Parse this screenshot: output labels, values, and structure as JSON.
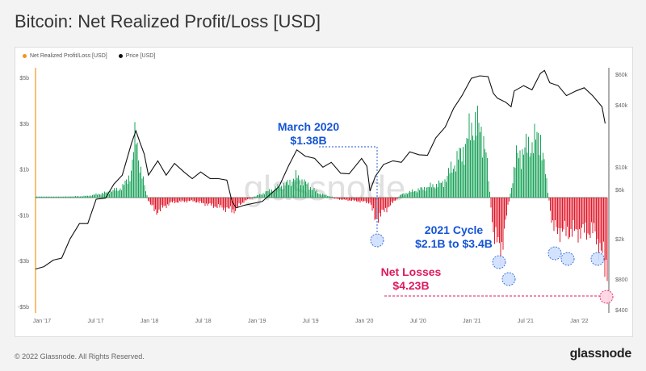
{
  "title": "Bitcoin: Net Realized Profit/Loss [USD]",
  "legend": {
    "series1": "Net Realized Profit/Loss [USD]",
    "series2": "Price [USD]",
    "color1": "#f7931a",
    "color2": "#111111"
  },
  "footer": "© 2022 Glassnode. All Rights Reserved.",
  "brand": "glassnode",
  "watermark": "glassnode",
  "chart_data": {
    "type": "bar+line",
    "x_ticks": [
      "Jan '17",
      "Jul '17",
      "Jan '18",
      "Jul '18",
      "Jan '19",
      "Jul '19",
      "Jan '20",
      "Jul '20",
      "Jan '21",
      "Jul '21",
      "Jan '22"
    ],
    "y_left_ticks": [
      "$5b",
      "$3b",
      "$1b",
      "-$1b",
      "-$3b",
      "-$5b"
    ],
    "y_right_ticks": [
      "$60k",
      "$40k",
      "$10k",
      "$6k",
      "$2k",
      "$800",
      "$400"
    ],
    "ylim_left": [
      -5,
      5
    ],
    "colors": {
      "profit": "#1aa35a",
      "loss": "#e0192b",
      "price": "#111111",
      "annotation_blue": "#1453d6",
      "annotation_pink": "#e0195e"
    },
    "price_series": [
      [
        2017.0,
        950
      ],
      [
        2017.08,
        1000
      ],
      [
        2017.17,
        1150
      ],
      [
        2017.25,
        1200
      ],
      [
        2017.33,
        1800
      ],
      [
        2017.42,
        2500
      ],
      [
        2017.5,
        2500
      ],
      [
        2017.58,
        4200
      ],
      [
        2017.67,
        4300
      ],
      [
        2017.75,
        5800
      ],
      [
        2017.83,
        7000
      ],
      [
        2017.92,
        14000
      ],
      [
        2017.96,
        18000
      ],
      [
        2018.0,
        14000
      ],
      [
        2018.04,
        11000
      ],
      [
        2018.08,
        7000
      ],
      [
        2018.17,
        9500
      ],
      [
        2018.25,
        7000
      ],
      [
        2018.33,
        9000
      ],
      [
        2018.42,
        7500
      ],
      [
        2018.5,
        6500
      ],
      [
        2018.58,
        7500
      ],
      [
        2018.67,
        6500
      ],
      [
        2018.75,
        6500
      ],
      [
        2018.83,
        6300
      ],
      [
        2018.88,
        4000
      ],
      [
        2018.92,
        3500
      ],
      [
        2019.0,
        3700
      ],
      [
        2019.17,
        4000
      ],
      [
        2019.33,
        5500
      ],
      [
        2019.42,
        8500
      ],
      [
        2019.5,
        12000
      ],
      [
        2019.58,
        10500
      ],
      [
        2019.67,
        10000
      ],
      [
        2019.75,
        8300
      ],
      [
        2019.83,
        9200
      ],
      [
        2019.92,
        7300
      ],
      [
        2020.0,
        7200
      ],
      [
        2020.12,
        10000
      ],
      [
        2020.17,
        8500
      ],
      [
        2020.2,
        5000
      ],
      [
        2020.25,
        6800
      ],
      [
        2020.33,
        8800
      ],
      [
        2020.42,
        9500
      ],
      [
        2020.5,
        9200
      ],
      [
        2020.58,
        11500
      ],
      [
        2020.67,
        10800
      ],
      [
        2020.75,
        10700
      ],
      [
        2020.83,
        15500
      ],
      [
        2020.92,
        19500
      ],
      [
        2021.0,
        29000
      ],
      [
        2021.08,
        38000
      ],
      [
        2021.17,
        55000
      ],
      [
        2021.25,
        58000
      ],
      [
        2021.33,
        57000
      ],
      [
        2021.38,
        40000
      ],
      [
        2021.42,
        36000
      ],
      [
        2021.5,
        33000
      ],
      [
        2021.55,
        30000
      ],
      [
        2021.58,
        42000
      ],
      [
        2021.67,
        47000
      ],
      [
        2021.75,
        43000
      ],
      [
        2021.83,
        61000
      ],
      [
        2021.87,
        65000
      ],
      [
        2021.92,
        50000
      ],
      [
        2022.0,
        47000
      ],
      [
        2022.08,
        38000
      ],
      [
        2022.17,
        42000
      ],
      [
        2022.25,
        45000
      ],
      [
        2022.33,
        38000
      ],
      [
        2022.42,
        30000
      ],
      [
        2022.45,
        21000
      ]
    ],
    "realized_pl_series": [
      [
        2017.0,
        0.02
      ],
      [
        2017.25,
        0.05
      ],
      [
        2017.5,
        0.1
      ],
      [
        2017.67,
        0.3
      ],
      [
        2017.83,
        0.6
      ],
      [
        2017.92,
        1.6
      ],
      [
        2017.96,
        4.2
      ],
      [
        2018.0,
        1.8
      ],
      [
        2018.08,
        -0.2
      ],
      [
        2018.15,
        -0.9
      ],
      [
        2018.3,
        -0.3
      ],
      [
        2018.5,
        -0.2
      ],
      [
        2018.9,
        -0.8
      ],
      [
        2019.0,
        -0.2
      ],
      [
        2019.42,
        0.9
      ],
      [
        2019.5,
        1.3
      ],
      [
        2019.7,
        0.3
      ],
      [
        2019.9,
        -0.1
      ],
      [
        2020.2,
        -0.3
      ],
      [
        2020.25,
        -1.38
      ],
      [
        2020.5,
        0.2
      ],
      [
        2020.9,
        0.9
      ],
      [
        2021.0,
        2.0
      ],
      [
        2021.1,
        3.0
      ],
      [
        2021.2,
        4.8
      ],
      [
        2021.3,
        3.5
      ],
      [
        2021.38,
        -2.1
      ],
      [
        2021.45,
        -3.4
      ],
      [
        2021.6,
        2.5
      ],
      [
        2021.83,
        3.8
      ],
      [
        2021.95,
        -1.9
      ],
      [
        2022.05,
        -2.1
      ],
      [
        2022.35,
        -2.1
      ],
      [
        2022.45,
        -4.23
      ]
    ],
    "annotations": [
      {
        "lines": [
          "March 2020",
          "$1.38B"
        ]
      },
      {
        "lines": [
          "2021 Cycle",
          "$2.1B to $3.4B"
        ]
      },
      {
        "lines": [
          "Net Losses",
          "$4.23B"
        ]
      }
    ]
  }
}
